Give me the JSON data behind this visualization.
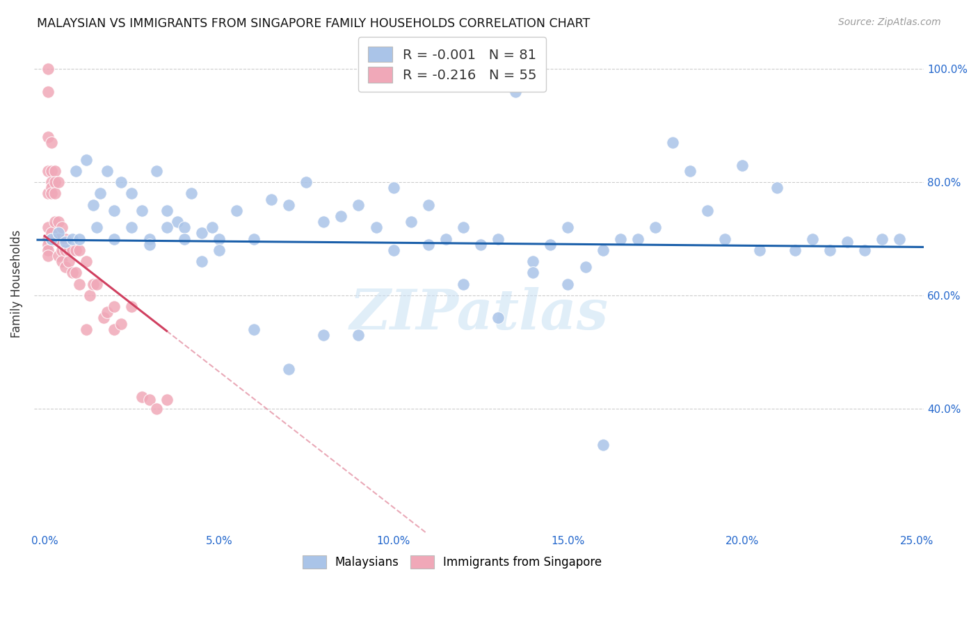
{
  "title": "MALAYSIAN VS IMMIGRANTS FROM SINGAPORE FAMILY HOUSEHOLDS CORRELATION CHART",
  "source": "Source: ZipAtlas.com",
  "ylabel": "Family Households",
  "blue_R": -0.001,
  "blue_N": 81,
  "pink_R": -0.216,
  "pink_N": 55,
  "blue_color": "#aac4e8",
  "pink_color": "#f0a8b8",
  "blue_line_color": "#1a5faa",
  "pink_line_color": "#d04060",
  "xlim": [
    0.0,
    0.25
  ],
  "ylim": [
    0.18,
    1.06
  ],
  "yticks": [
    0.4,
    0.6,
    0.8,
    1.0
  ],
  "xticks": [
    0.0,
    0.05,
    0.1,
    0.15,
    0.2,
    0.25
  ],
  "xtick_labels": [
    "0.0%",
    "5.0%",
    "10.0%",
    "15.0%",
    "20.0%",
    "25.0%"
  ],
  "ytick_labels_right": [
    "40.0%",
    "60.0%",
    "80.0%",
    "100.0%"
  ],
  "blue_trend_y0": 0.698,
  "blue_trend_slope": -0.05,
  "pink_trend_y0": 0.705,
  "pink_trend_slope": -4.8,
  "pink_solid_xend": 0.035,
  "watermark_text": "ZIPatlas",
  "legend_R_color": "#cc0022",
  "legend_N_color": "#1a5faa",
  "blue_x": [
    0.002,
    0.004,
    0.006,
    0.009,
    0.012,
    0.014,
    0.016,
    0.018,
    0.02,
    0.022,
    0.025,
    0.028,
    0.03,
    0.032,
    0.035,
    0.038,
    0.04,
    0.042,
    0.045,
    0.048,
    0.05,
    0.055,
    0.06,
    0.065,
    0.07,
    0.075,
    0.08,
    0.085,
    0.09,
    0.095,
    0.1,
    0.105,
    0.11,
    0.115,
    0.12,
    0.125,
    0.13,
    0.135,
    0.14,
    0.145,
    0.15,
    0.155,
    0.16,
    0.165,
    0.17,
    0.175,
    0.18,
    0.185,
    0.19,
    0.195,
    0.2,
    0.205,
    0.21,
    0.215,
    0.22,
    0.225,
    0.23,
    0.235,
    0.24,
    0.245,
    0.008,
    0.01,
    0.015,
    0.02,
    0.025,
    0.03,
    0.035,
    0.04,
    0.045,
    0.05,
    0.06,
    0.07,
    0.08,
    0.09,
    0.1,
    0.11,
    0.12,
    0.13,
    0.14,
    0.15,
    0.16
  ],
  "blue_y": [
    0.7,
    0.71,
    0.695,
    0.82,
    0.84,
    0.76,
    0.78,
    0.82,
    0.75,
    0.8,
    0.78,
    0.75,
    0.7,
    0.82,
    0.75,
    0.73,
    0.72,
    0.78,
    0.71,
    0.72,
    0.7,
    0.75,
    0.7,
    0.77,
    0.76,
    0.8,
    0.73,
    0.74,
    0.76,
    0.72,
    0.79,
    0.73,
    0.76,
    0.7,
    0.72,
    0.69,
    0.7,
    0.96,
    0.66,
    0.69,
    0.72,
    0.65,
    0.68,
    0.7,
    0.7,
    0.72,
    0.87,
    0.82,
    0.75,
    0.7,
    0.83,
    0.68,
    0.79,
    0.68,
    0.7,
    0.68,
    0.695,
    0.68,
    0.7,
    0.7,
    0.7,
    0.7,
    0.72,
    0.7,
    0.72,
    0.69,
    0.72,
    0.7,
    0.66,
    0.68,
    0.54,
    0.47,
    0.53,
    0.53,
    0.68,
    0.69,
    0.62,
    0.56,
    0.64,
    0.62,
    0.335
  ],
  "pink_x": [
    0.001,
    0.001,
    0.001,
    0.001,
    0.001,
    0.001,
    0.001,
    0.001,
    0.001,
    0.001,
    0.002,
    0.002,
    0.002,
    0.002,
    0.002,
    0.002,
    0.002,
    0.003,
    0.003,
    0.003,
    0.003,
    0.003,
    0.004,
    0.004,
    0.004,
    0.004,
    0.005,
    0.005,
    0.005,
    0.006,
    0.006,
    0.006,
    0.007,
    0.007,
    0.008,
    0.008,
    0.009,
    0.009,
    0.01,
    0.01,
    0.012,
    0.012,
    0.013,
    0.014,
    0.015,
    0.017,
    0.018,
    0.02,
    0.02,
    0.022,
    0.025,
    0.028,
    0.03,
    0.032,
    0.035
  ],
  "pink_y": [
    1.0,
    0.96,
    0.88,
    0.82,
    0.78,
    0.72,
    0.7,
    0.69,
    0.68,
    0.67,
    0.87,
    0.82,
    0.8,
    0.79,
    0.78,
    0.71,
    0.7,
    0.82,
    0.8,
    0.78,
    0.73,
    0.7,
    0.8,
    0.73,
    0.7,
    0.67,
    0.72,
    0.68,
    0.66,
    0.7,
    0.68,
    0.65,
    0.68,
    0.66,
    0.68,
    0.64,
    0.68,
    0.64,
    0.68,
    0.62,
    0.66,
    0.54,
    0.6,
    0.62,
    0.62,
    0.56,
    0.57,
    0.58,
    0.54,
    0.55,
    0.58,
    0.42,
    0.415,
    0.4,
    0.415
  ]
}
